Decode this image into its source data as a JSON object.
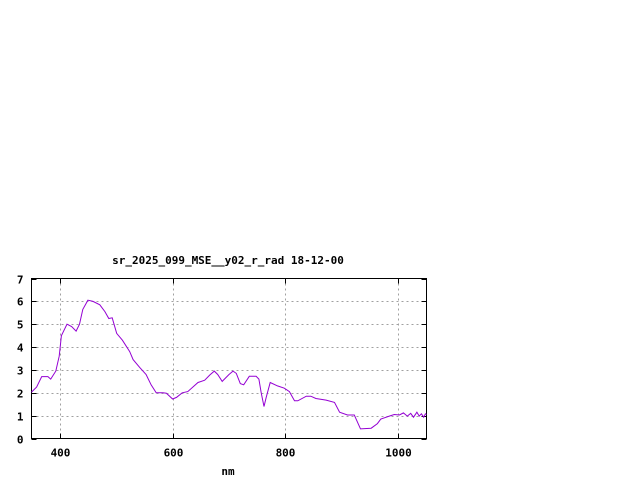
{
  "chart_data": {
    "type": "line",
    "title": "sr_2025_099_MSE__y02_r_rad 18-12-00",
    "xlabel": "nm",
    "ylabel": "",
    "xlim": [
      350,
      1050
    ],
    "ylim": [
      0,
      7
    ],
    "xticks": [
      400,
      600,
      800,
      1000
    ],
    "yticks": [
      0,
      1,
      2,
      3,
      4,
      5,
      6,
      7
    ],
    "grid": true,
    "line_color": "#9400d3",
    "series": [
      {
        "x": [
          350,
          359,
          368,
          379,
          384,
          393,
          399,
          403,
          413,
          421,
          429,
          435,
          441,
          450,
          459,
          471,
          480,
          487,
          493,
          501,
          511,
          524,
          530,
          542,
          553,
          562,
          571,
          583,
          589,
          600,
          607,
          617,
          627,
          645,
          657,
          666,
          674,
          680,
          688,
          700,
          707,
          713,
          720,
          726,
          736,
          748,
          753,
          757,
          762,
          766,
          773,
          786,
          798,
          807,
          816,
          822,
          837,
          845,
          854,
          872,
          887,
          896,
          910,
          922,
          933,
          952,
          963,
          969,
          984,
          993,
          1002,
          1009,
          1016,
          1022,
          1027,
          1033,
          1037,
          1041,
          1045,
          1048,
          1050
        ],
        "values": [
          2.03,
          2.25,
          2.71,
          2.71,
          2.6,
          2.95,
          3.6,
          4.5,
          5.0,
          4.9,
          4.7,
          5.0,
          5.65,
          6.05,
          6.0,
          5.85,
          5.55,
          5.25,
          5.28,
          4.6,
          4.3,
          3.8,
          3.45,
          3.1,
          2.8,
          2.35,
          2.0,
          2.0,
          1.98,
          1.73,
          1.8,
          2.0,
          2.05,
          2.45,
          2.55,
          2.78,
          2.95,
          2.8,
          2.5,
          2.8,
          2.95,
          2.85,
          2.4,
          2.35,
          2.72,
          2.72,
          2.6,
          2.0,
          1.4,
          1.8,
          2.45,
          2.3,
          2.2,
          2.05,
          1.65,
          1.65,
          1.85,
          1.85,
          1.75,
          1.68,
          1.58,
          1.15,
          1.03,
          1.03,
          0.42,
          0.45,
          0.65,
          0.85,
          0.98,
          1.05,
          1.03,
          1.12,
          0.98,
          1.1,
          0.93,
          1.15,
          0.98,
          1.08,
          0.93,
          1.08,
          1.05
        ]
      }
    ]
  }
}
